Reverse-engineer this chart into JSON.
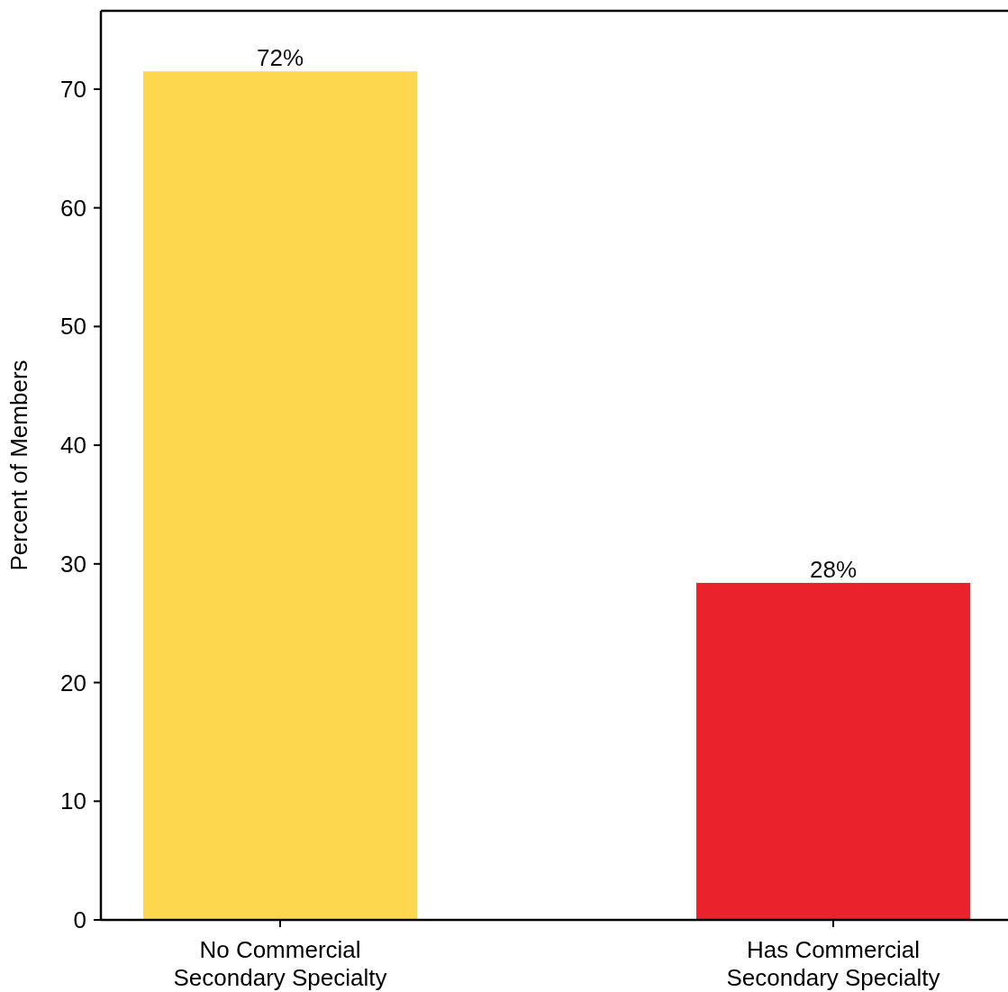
{
  "chart_data": {
    "type": "bar",
    "ylabel": "Percent of Members",
    "categories": [
      "No Commercial Secondary Specialty",
      "Has Commercial Secondary Specialty"
    ],
    "values": [
      71.5,
      28.4
    ],
    "colors": [
      "#fdd84e",
      "#ea222b"
    ],
    "value_labels": [
      "72%",
      "28%"
    ],
    "ylim": [
      0,
      76.6
    ],
    "yticks": [
      0,
      10,
      20,
      30,
      40,
      50,
      60,
      70
    ],
    "grid": false
  }
}
